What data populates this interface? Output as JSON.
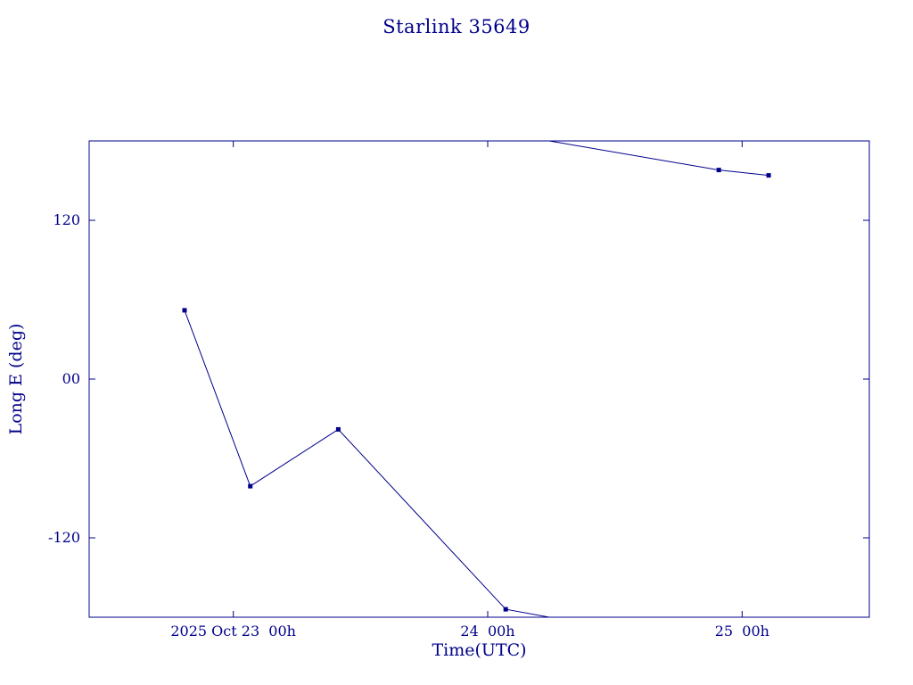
{
  "chart_data": {
    "type": "line",
    "title": "Starlink 35649",
    "xlabel": "Time(UTC)",
    "ylabel": "Long E (deg)",
    "line_color": "#00008b",
    "background_color": "#ffffff",
    "grid": false,
    "legend": "none",
    "ylim": [
      -180,
      180
    ],
    "x_unit": "hours after 2025 Oct 23 00h UTC",
    "xlim_hours": [
      -13.6,
      60.0
    ],
    "yticks": [
      {
        "value": 120,
        "label": "120"
      },
      {
        "value": 0,
        "label": "00"
      },
      {
        "value": -120,
        "label": "-120"
      }
    ],
    "xticks": [
      {
        "hours": 0,
        "label": "2025 Oct 23  00h"
      },
      {
        "hours": 24,
        "label": "24  00h"
      },
      {
        "hours": 48,
        "label": "25  00h"
      }
    ],
    "series": [
      {
        "name": "Starlink 35649 longitude east",
        "marker": "square",
        "points": [
          {
            "hours": -4.6,
            "deg": 52
          },
          {
            "hours": 1.6,
            "deg": -81
          },
          {
            "hours": 9.9,
            "deg": -38
          },
          {
            "hours": 25.7,
            "deg": -174
          },
          {
            "hours": 45.8,
            "deg": 158
          },
          {
            "hours": 50.5,
            "deg": 154
          }
        ],
        "segments": [
          [
            [
              -4.6,
              52
            ],
            [
              1.6,
              -81
            ],
            [
              9.9,
              -38
            ],
            [
              25.7,
              -174
            ],
            [
              29.8,
              -180
            ]
          ],
          [
            [
              29.8,
              180
            ],
            [
              45.8,
              158
            ],
            [
              50.5,
              154
            ]
          ]
        ]
      }
    ]
  }
}
